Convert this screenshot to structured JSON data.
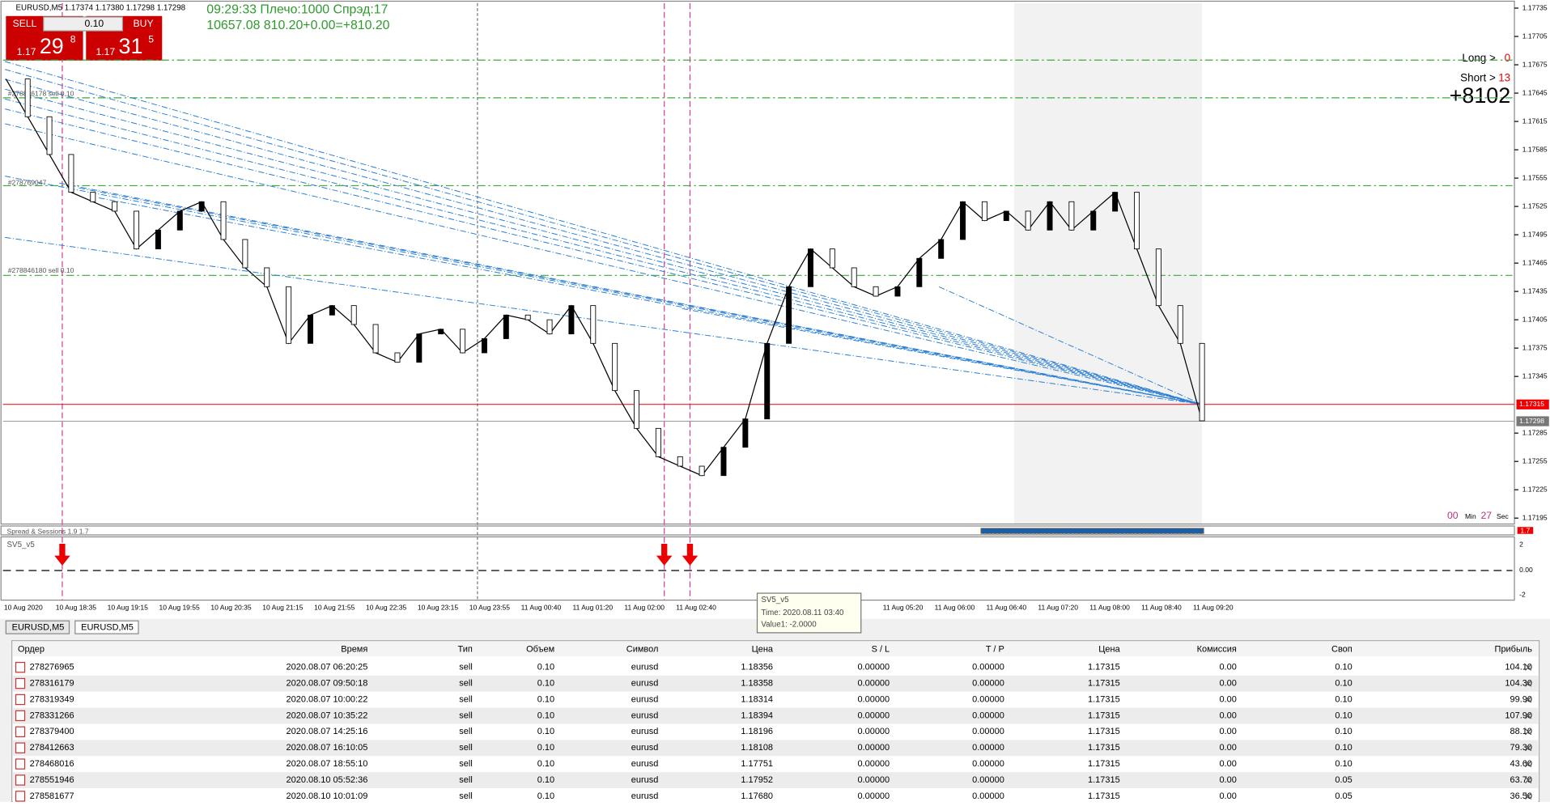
{
  "header": {
    "symbol_line": "EURUSD,M5  1.17374 1.17380 1.17298 1.17298",
    "sell": "SELL",
    "buy": "BUY",
    "lot": "0.10",
    "sell_price": {
      "big": "1.17",
      "mid": "29",
      "small": "8"
    },
    "buy_price": {
      "big": "1.17",
      "mid": "31",
      "small": "5"
    },
    "info1": "09:29:33 Плечо:1000 Спрэд:17",
    "info2": "10657.08 810.20+0.00=+810.20"
  },
  "chart": {
    "yticks": [
      1.17735,
      1.17705,
      1.17675,
      1.17645,
      1.17615,
      1.17585,
      1.17555,
      1.17525,
      1.17495,
      1.17465,
      1.17435,
      1.17405,
      1.17375,
      1.17345,
      1.17285,
      1.17255,
      1.17225,
      1.17195
    ],
    "ylim": [
      1.17195,
      1.17735
    ],
    "ask_label": "1.17315",
    "bid_label": "1.17298",
    "closes": [
      1.1766,
      1.1762,
      1.1758,
      1.1754,
      1.1753,
      1.1752,
      1.1748,
      1.175,
      1.1752,
      1.1753,
      1.1749,
      1.1746,
      1.1744,
      1.1738,
      1.1741,
      1.1742,
      1.174,
      1.1737,
      1.1736,
      1.1739,
      1.17395,
      1.1737,
      1.17385,
      1.1741,
      1.17405,
      1.1739,
      1.1742,
      1.1738,
      1.1733,
      1.1729,
      1.1726,
      1.1725,
      1.1724,
      1.1727,
      1.173,
      1.1738,
      1.1744,
      1.1748,
      1.1746,
      1.1744,
      1.1743,
      1.1744,
      1.1747,
      1.1749,
      1.1753,
      1.1751,
      1.1752,
      1.175,
      1.1753,
      1.175,
      1.1752,
      1.1754,
      1.1748,
      1.1742,
      1.1738,
      1.17298
    ],
    "levels": [
      1.1768,
      1.1764,
      1.17547,
      1.17452
    ],
    "order_labels": [
      "#278846178 sell 0.10",
      "#278769047",
      "#278846180 sell 0.10"
    ],
    "times": [
      "10 Aug 2020",
      "10 Aug 18:35",
      "10 Aug 19:15",
      "10 Aug 19:55",
      "10 Aug 20:35",
      "10 Aug 21:15",
      "10 Aug 21:55",
      "10 Aug 22:35",
      "10 Aug 23:15",
      "10 Aug 23:55",
      "11 Aug 00:40",
      "11 Aug 01:20",
      "11 Aug 02:00",
      "11 Aug 02:40",
      null,
      null,
      null,
      "11 Aug 05:20",
      "11 Aug 06:00",
      "11 Aug 06:40",
      "11 Aug 07:20",
      "11 Aug 08:00",
      "11 Aug 08:40",
      "11 Aug 09:20"
    ],
    "long_label": "Long > ",
    "long_value": "0",
    "short_label": "Short > ",
    "short_value": "13",
    "profit": "+8102",
    "timer": {
      "min": "00",
      "min_label": "Min",
      "sec": "27",
      "sec_label": "Sec"
    }
  },
  "indicators": {
    "spread": "Spread & Sessions 1.9 1.7",
    "spread_value": "1.7",
    "sv5": "SV5_v5",
    "sv5_ticks": [
      "2",
      "0.00",
      "-2"
    ]
  },
  "tooltip": {
    "title": "SV5_v5",
    "time": "Time: 2020.08.11 03:40",
    "value": "Value1: -2.0000"
  },
  "tabs": [
    "EURUSD,M5",
    "EURUSD,M5"
  ],
  "table": {
    "columns": [
      "Ордер",
      "Время",
      "Тип",
      "Объем",
      "Символ",
      "Цена",
      "S / L",
      "T / P",
      "Цена",
      "Комиссия",
      "Своп",
      "Прибыль"
    ],
    "rows": [
      [
        "278276965",
        "2020.08.07 06:20:25",
        "sell",
        "0.10",
        "eurusd",
        "1.18356",
        "0.00000",
        "0.00000",
        "1.17315",
        "0.00",
        "0.10",
        "104.10"
      ],
      [
        "278316179",
        "2020.08.07 09:50:18",
        "sell",
        "0.10",
        "eurusd",
        "1.18358",
        "0.00000",
        "0.00000",
        "1.17315",
        "0.00",
        "0.10",
        "104.30"
      ],
      [
        "278319349",
        "2020.08.07 10:00:22",
        "sell",
        "0.10",
        "eurusd",
        "1.18314",
        "0.00000",
        "0.00000",
        "1.17315",
        "0.00",
        "0.10",
        "99.90"
      ],
      [
        "278331266",
        "2020.08.07 10:35:22",
        "sell",
        "0.10",
        "eurusd",
        "1.18394",
        "0.00000",
        "0.00000",
        "1.17315",
        "0.00",
        "0.10",
        "107.90"
      ],
      [
        "278379400",
        "2020.08.07 14:25:16",
        "sell",
        "0.10",
        "eurusd",
        "1.18196",
        "0.00000",
        "0.00000",
        "1.17315",
        "0.00",
        "0.10",
        "88.10"
      ],
      [
        "278412663",
        "2020.08.07 16:10:05",
        "sell",
        "0.10",
        "eurusd",
        "1.18108",
        "0.00000",
        "0.00000",
        "1.17315",
        "0.00",
        "0.10",
        "79.30"
      ],
      [
        "278468016",
        "2020.08.07 18:55:10",
        "sell",
        "0.10",
        "eurusd",
        "1.17751",
        "0.00000",
        "0.00000",
        "1.17315",
        "0.00",
        "0.10",
        "43.60"
      ],
      [
        "278551946",
        "2020.08.10 05:52:36",
        "sell",
        "0.10",
        "eurusd",
        "1.17952",
        "0.00000",
        "0.00000",
        "1.17315",
        "0.00",
        "0.05",
        "63.70"
      ],
      [
        "278581677",
        "2020.08.10 10:01:09",
        "sell",
        "0.10",
        "eurusd",
        "1.17680",
        "0.00000",
        "0.00000",
        "1.17315",
        "0.00",
        "0.05",
        "36.50"
      ]
    ]
  }
}
